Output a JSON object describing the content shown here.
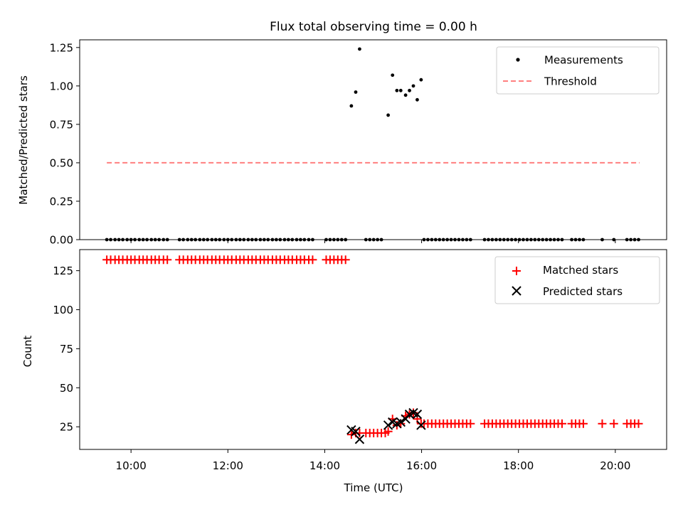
{
  "title": "Flux total observing time = 0.00 h",
  "colors": {
    "measurements": "#000000",
    "threshold": "#ff7f7f",
    "matched": "#ff0000",
    "predicted": "#000000"
  },
  "chart_data": [
    {
      "type": "scatter",
      "panel": "top",
      "xlabel": "",
      "ylabel": "Matched/Predicted stars",
      "xlim": [
        8.94,
        21.06
      ],
      "ylim": [
        0,
        1.3
      ],
      "yticks": [
        0.0,
        0.25,
        0.5,
        0.75,
        1.0,
        1.25
      ],
      "ytick_labels": [
        "0.00",
        "0.25",
        "0.50",
        "0.75",
        "1.00",
        "1.25"
      ],
      "xticks": [
        10,
        12,
        14,
        16,
        18,
        20
      ],
      "grid": false,
      "legend": {
        "placement": "top-right",
        "entries": [
          "Measurements",
          "Threshold"
        ]
      },
      "series": [
        {
          "name": "Measurements",
          "type": "scatter",
          "points": [
            [
              14.55,
              0.87
            ],
            [
              14.64,
              0.96
            ],
            [
              14.72,
              1.24
            ],
            [
              15.31,
              0.81
            ],
            [
              15.4,
              1.07
            ],
            [
              15.49,
              0.97
            ],
            [
              15.57,
              0.97
            ],
            [
              15.67,
              0.94
            ],
            [
              15.75,
              0.97
            ],
            [
              15.83,
              1.0
            ],
            [
              15.91,
              0.91
            ],
            [
              15.99,
              1.04
            ]
          ],
          "zero_x": [
            "9.5",
            "9.58",
            "9.67",
            "9.75",
            "9.83",
            "9.92",
            "10.0",
            "10.08",
            "10.17",
            "10.25",
            "10.33",
            "10.42",
            "10.5",
            "10.58",
            "10.67",
            "10.75",
            "11.0",
            "11.08",
            "11.17",
            "11.25",
            "11.33",
            "11.42",
            "11.5",
            "11.58",
            "11.67",
            "11.75",
            "11.83",
            "11.92",
            "12.0",
            "12.08",
            "12.17",
            "12.25",
            "12.33",
            "12.42",
            "12.5",
            "12.58",
            "12.67",
            "12.75",
            "12.83",
            "12.92",
            "13.0",
            "13.08",
            "13.17",
            "13.25",
            "13.33",
            "13.42",
            "13.5",
            "13.58",
            "13.67",
            "13.75",
            "14.03",
            "14.11",
            "14.19",
            "14.27",
            "14.35",
            "14.43",
            "14.85",
            "14.93",
            "15.01",
            "15.09",
            "15.17",
            "16.05",
            "16.13",
            "16.21",
            "16.29",
            "16.37",
            "16.45",
            "16.53",
            "16.61",
            "16.69",
            "16.77",
            "16.85",
            "16.93",
            "17.01",
            "17.3",
            "17.38",
            "17.46",
            "17.54",
            "17.62",
            "17.7",
            "17.78",
            "17.86",
            "17.94",
            "18.02",
            "18.1",
            "18.18",
            "18.26",
            "18.34",
            "18.42",
            "18.5",
            "18.58",
            "18.66",
            "18.74",
            "18.82",
            "18.9",
            "19.1",
            "19.18",
            "19.26",
            "19.34",
            "19.73",
            "19.97",
            "20.24",
            "20.32",
            "20.4",
            "20.48"
          ]
        },
        {
          "name": "Threshold",
          "type": "line",
          "style": "dashed",
          "x": [
            9.5,
            20.5
          ],
          "y": [
            0.5,
            0.5
          ]
        }
      ]
    },
    {
      "type": "scatter",
      "panel": "bottom",
      "xlabel": "Time (UTC)",
      "ylabel": "Count",
      "xlim": [
        8.94,
        21.06
      ],
      "ylim": [
        10.5,
        138.5
      ],
      "yticks": [
        25,
        50,
        75,
        100,
        125
      ],
      "ytick_labels": [
        "25",
        "50",
        "75",
        "100",
        "125"
      ],
      "xticks": [
        10,
        12,
        14,
        16,
        18,
        20
      ],
      "xtick_labels": [
        "10:00",
        "12:00",
        "14:00",
        "16:00",
        "18:00",
        "20:00"
      ],
      "grid": false,
      "legend": {
        "placement": "top-right",
        "entries": [
          "Matched stars",
          "Predicted stars"
        ]
      },
      "series": [
        {
          "name": "Matched stars",
          "marker": "+",
          "points_at_132_x": [
            "9.5",
            "9.58",
            "9.67",
            "9.75",
            "9.83",
            "9.92",
            "10.0",
            "10.08",
            "10.17",
            "10.25",
            "10.33",
            "10.42",
            "10.5",
            "10.58",
            "10.67",
            "10.75",
            "11.0",
            "11.08",
            "11.17",
            "11.25",
            "11.33",
            "11.42",
            "11.5",
            "11.58",
            "11.67",
            "11.75",
            "11.83",
            "11.92",
            "12.0",
            "12.08",
            "12.17",
            "12.25",
            "12.33",
            "12.42",
            "12.5",
            "12.58",
            "12.67",
            "12.75",
            "12.83",
            "12.92",
            "13.0",
            "13.08",
            "13.17",
            "13.25",
            "13.33",
            "13.42",
            "13.5",
            "13.58",
            "13.67",
            "13.75",
            "14.03",
            "14.11",
            "14.19",
            "14.27",
            "14.35",
            "14.43"
          ],
          "points": [
            [
              14.55,
              20
            ],
            [
              14.64,
              21
            ],
            [
              14.72,
              21
            ],
            [
              14.85,
              21
            ],
            [
              14.93,
              21
            ],
            [
              15.01,
              21
            ],
            [
              15.09,
              21
            ],
            [
              15.17,
              21
            ],
            [
              15.25,
              21
            ],
            [
              15.31,
              22
            ],
            [
              15.4,
              30
            ],
            [
              15.49,
              26
            ],
            [
              15.57,
              27
            ],
            [
              15.67,
              32
            ],
            [
              15.75,
              33
            ],
            [
              15.83,
              34
            ],
            [
              15.91,
              30
            ],
            [
              15.99,
              27
            ]
          ],
          "points_at_27_x": [
            "16.05",
            "16.13",
            "16.21",
            "16.29",
            "16.37",
            "16.45",
            "16.53",
            "16.61",
            "16.69",
            "16.77",
            "16.85",
            "16.93",
            "17.01",
            "17.3",
            "17.38",
            "17.46",
            "17.54",
            "17.62",
            "17.7",
            "17.78",
            "17.86",
            "17.94",
            "18.02",
            "18.1",
            "18.18",
            "18.26",
            "18.34",
            "18.42",
            "18.5",
            "18.58",
            "18.66",
            "18.74",
            "18.82",
            "18.9",
            "19.1",
            "19.18",
            "19.26",
            "19.34",
            "19.73",
            "19.97",
            "20.24",
            "20.32",
            "20.4",
            "20.48"
          ]
        },
        {
          "name": "Predicted stars",
          "marker": "x",
          "points": [
            [
              14.55,
              23
            ],
            [
              14.64,
              22
            ],
            [
              14.72,
              17
            ],
            [
              15.31,
              26
            ],
            [
              15.4,
              28
            ],
            [
              15.49,
              27
            ],
            [
              15.57,
              28
            ],
            [
              15.67,
              30
            ],
            [
              15.75,
              33
            ],
            [
              15.83,
              34
            ],
            [
              15.91,
              33
            ],
            [
              15.99,
              26
            ]
          ]
        }
      ]
    }
  ]
}
